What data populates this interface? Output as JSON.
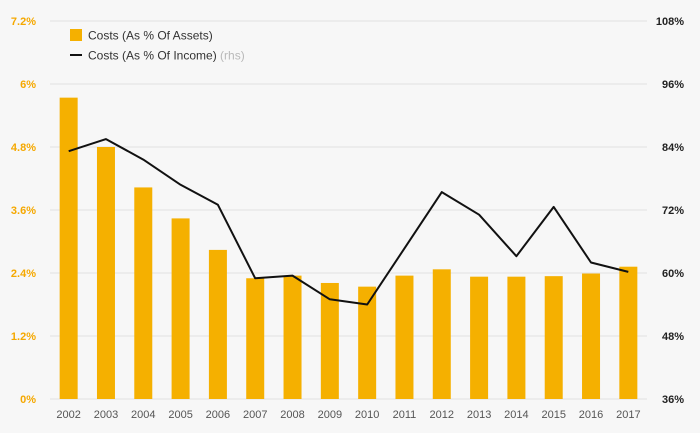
{
  "chart_data": {
    "type": "bar",
    "categories": [
      "2002",
      "2003",
      "2004",
      "2005",
      "2006",
      "2007",
      "2008",
      "2009",
      "2010",
      "2011",
      "2012",
      "2013",
      "2014",
      "2015",
      "2016",
      "2017"
    ],
    "series": [
      {
        "name": "Costs (As % Of Assets)",
        "type": "bar",
        "axis": "left",
        "color": "#f5b000",
        "values": [
          5.74,
          4.8,
          4.03,
          3.44,
          2.84,
          2.3,
          2.35,
          2.21,
          2.14,
          2.35,
          2.47,
          2.33,
          2.33,
          2.34,
          2.39,
          2.52
        ]
      },
      {
        "name": "Costs (As % Of Income)",
        "name_suffix": "(rhs)",
        "type": "line",
        "axis": "right",
        "color": "#111111",
        "values": [
          83.2,
          85.5,
          81.6,
          76.8,
          73.0,
          59.0,
          59.5,
          55.0,
          54.0,
          64.7,
          75.4,
          71.1,
          63.2,
          72.6,
          62.0,
          60.2
        ]
      }
    ],
    "y_left": {
      "ylim": [
        0,
        7.2
      ],
      "ticks": [
        "0%",
        "1.2%",
        "2.4%",
        "3.6%",
        "4.8%",
        "6%",
        "7.2%"
      ]
    },
    "y_right": {
      "ylim": [
        36,
        108
      ],
      "ticks": [
        "36%",
        "48%",
        "60%",
        "72%",
        "84%",
        "96%",
        "108%"
      ]
    },
    "grid": true,
    "legend": "top-left",
    "colors": {
      "background": "#f7f7f7",
      "grid": "#e2e2e2",
      "left_axis_text": "#f5a800",
      "right_axis_text": "#222222",
      "legend_suffix": "#b9b9b9"
    }
  }
}
